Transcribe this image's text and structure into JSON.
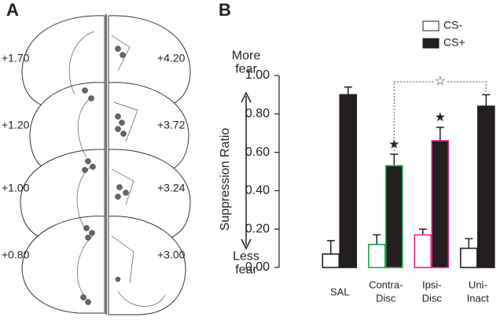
{
  "panel_a": {
    "label": "A",
    "left_sections": [
      "+1.70",
      "+1.20",
      "+1.00",
      "+0.80"
    ],
    "right_sections": [
      "+4.20",
      "+3.72",
      "+3.24",
      "+3.00"
    ]
  },
  "chart_data": {
    "type": "bar",
    "panel_label": "B",
    "y_label": "Suppression Ratio",
    "y_label_top": "More\nfear",
    "y_label_bottom": "Less\nfear",
    "categories": [
      "SAL",
      "Contra-\nDisc",
      "Ipsi-\nDisc",
      "Uni-\nInact"
    ],
    "series": [
      {
        "name": "CS-",
        "color": "#ffffff",
        "edge_colors": [
          "#231f20",
          "#1aa64a",
          "#e0218a",
          "#231f20"
        ],
        "values": [
          0.07,
          0.12,
          0.17,
          0.1
        ],
        "errors": [
          0.07,
          0.05,
          0.03,
          0.05
        ]
      },
      {
        "name": "CS+",
        "color": "#231f20",
        "edge_colors": [
          "#231f20",
          "#1aa64a",
          "#e0218a",
          "#231f20"
        ],
        "values": [
          0.9,
          0.53,
          0.66,
          0.84
        ],
        "errors": [
          0.04,
          0.06,
          0.07,
          0.06
        ]
      }
    ],
    "ylim": [
      0,
      1
    ],
    "yticks": [
      {
        "value": 0,
        "label": "0.00"
      },
      {
        "value": 0.2,
        "label": "0.20"
      },
      {
        "value": 0.4,
        "label": "0.40"
      },
      {
        "value": 0.6,
        "label": "0.60"
      },
      {
        "value": 0.8,
        "label": "0.80"
      },
      {
        "value": 1,
        "label": "1.00"
      }
    ],
    "significance_marks": [
      null,
      "★",
      "★",
      null
    ],
    "bracket": {
      "mark": "☆",
      "between": [
        "Contra-\nDisc",
        "Uni-\nInact"
      ]
    }
  }
}
